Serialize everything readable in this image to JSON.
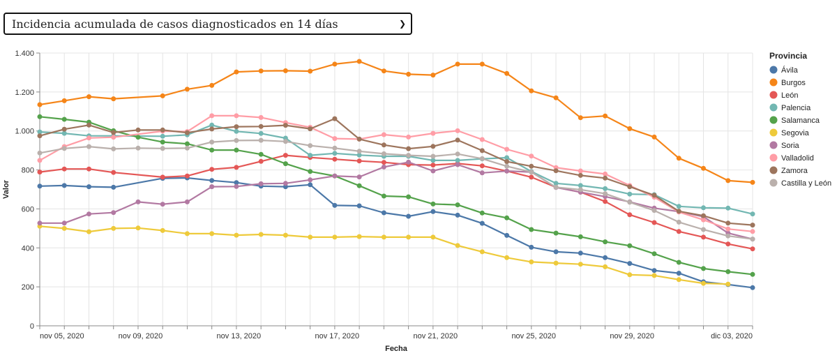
{
  "selector": {
    "selected": "Incidencia acumulada de casos diagnosticados en 14 días",
    "chevron_icon": "chevron-down-icon"
  },
  "chart_data": {
    "type": "line",
    "title": "",
    "xlabel": "Fecha",
    "ylabel": "Valor",
    "ylim": [
      0,
      1400
    ],
    "yticks": [
      0,
      200,
      400,
      600,
      800,
      1000,
      1200,
      1400
    ],
    "ytick_labels": [
      "0",
      "200",
      "400",
      "600",
      "800",
      "1.000",
      "1.200",
      "1.400"
    ],
    "xtick_labels": [
      {
        "day_index": 1,
        "label": "nov 05, 2020"
      },
      {
        "day_index": 5,
        "label": "nov 09, 2020"
      },
      {
        "day_index": 9,
        "label": "nov 13, 2020"
      },
      {
        "day_index": 13,
        "label": "nov 17, 2020"
      },
      {
        "day_index": 17,
        "label": "nov 21, 2020"
      },
      {
        "day_index": 21,
        "label": "nov 25, 2020"
      },
      {
        "day_index": 25,
        "label": "nov 29, 2020"
      },
      {
        "day_index": 29,
        "label": "dic 03, 2020"
      }
    ],
    "x": [
      "2020-11-04",
      "2020-11-05",
      "2020-11-06",
      "2020-11-07",
      "2020-11-08",
      "2020-11-09",
      "2020-11-10",
      "2020-11-11",
      "2020-11-12",
      "2020-11-13",
      "2020-11-14",
      "2020-11-15",
      "2020-11-16",
      "2020-11-17",
      "2020-11-18",
      "2020-11-19",
      "2020-11-20",
      "2020-11-21",
      "2020-11-22",
      "2020-11-23",
      "2020-11-24",
      "2020-11-25",
      "2020-11-26",
      "2020-11-27",
      "2020-11-28",
      "2020-11-29",
      "2020-11-30",
      "2020-12-01",
      "2020-12-02",
      "2020-12-03"
    ],
    "grid": true,
    "legend": {
      "title": "Provincia",
      "position": "right"
    },
    "series": [
      {
        "name": "Ávila",
        "color": "#4c78a8",
        "values": [
          717,
          720,
          714,
          711,
          null,
          757,
          759,
          746,
          735,
          717,
          714,
          724,
          618,
          616,
          580,
          562,
          586,
          568,
          526,
          464,
          403,
          380,
          373,
          350,
          320,
          284,
          270,
          226,
          212,
          196
        ]
      },
      {
        "name": "Burgos",
        "color": "#f58518",
        "values": [
          1135,
          1155,
          1176,
          1165,
          null,
          1180,
          1214,
          1234,
          1303,
          1308,
          1309,
          1307,
          1343,
          1357,
          1308,
          1291,
          1287,
          1343,
          1343,
          1295,
          1206,
          1170,
          1068,
          1077,
          1012,
          969,
          860,
          808,
          745,
          736
        ]
      },
      {
        "name": "León",
        "color": "#e45756",
        "values": [
          789,
          805,
          805,
          787,
          null,
          763,
          769,
          803,
          813,
          844,
          875,
          864,
          855,
          846,
          839,
          827,
          825,
          833,
          821,
          794,
          763,
          711,
          686,
          638,
          570,
          530,
          484,
          455,
          420,
          395
        ]
      },
      {
        "name": "Palencia",
        "color": "#72b7b2",
        "values": [
          995,
          988,
          975,
          975,
          null,
          973,
          980,
          1030,
          998,
          987,
          963,
          875,
          885,
          876,
          870,
          870,
          849,
          849,
          857,
          863,
          792,
          731,
          720,
          704,
          676,
          673,
          613,
          606,
          604,
          574
        ]
      },
      {
        "name": "Salamanca",
        "color": "#54a24b",
        "values": [
          1073,
          1060,
          1045,
          1001,
          968,
          943,
          934,
          902,
          902,
          880,
          832,
          792,
          769,
          719,
          666,
          662,
          625,
          621,
          579,
          554,
          494,
          476,
          457,
          431,
          411,
          370,
          326,
          294,
          278,
          264
        ]
      },
      {
        "name": "Segovia",
        "color": "#eeca3b",
        "values": [
          511,
          500,
          483,
          500,
          502,
          489,
          473,
          473,
          465,
          469,
          465,
          455,
          455,
          458,
          455,
          455,
          455,
          412,
          380,
          350,
          328,
          322,
          316,
          303,
          262,
          258,
          237,
          218,
          214,
          null
        ]
      },
      {
        "name": "Soria",
        "color": "#b279a2",
        "values": [
          527,
          527,
          574,
          581,
          636,
          624,
          636,
          714,
          715,
          729,
          731,
          749,
          769,
          764,
          815,
          840,
          795,
          827,
          785,
          794,
          789,
          710,
          686,
          663,
          636,
          604,
          586,
          560,
          476,
          445
        ]
      },
      {
        "name": "Valladolid",
        "color": "#ff9da6",
        "values": [
          849,
          920,
          964,
          968,
          null,
          999,
          997,
          1078,
          1078,
          1069,
          1043,
          1019,
          961,
          958,
          981,
          969,
          988,
          1001,
          956,
          906,
          871,
          812,
          795,
          779,
          720,
          660,
          584,
          544,
          497,
          484
        ]
      },
      {
        "name": "Zamora",
        "color": "#9d755d",
        "values": [
          975,
          1009,
          1030,
          992,
          1005,
          1005,
          991,
          1010,
          1022,
          1023,
          1029,
          1011,
          1063,
          958,
          928,
          909,
          921,
          953,
          899,
          843,
          819,
          796,
          772,
          758,
          714,
          670,
          588,
          565,
          527,
          517
        ]
      },
      {
        "name": "Castilla y León",
        "color": "#bab0ac",
        "values": [
          887,
          910,
          920,
          908,
          912,
          910,
          912,
          943,
          951,
          952,
          946,
          925,
          912,
          896,
          883,
          875,
          870,
          882,
          858,
          819,
          789,
          711,
          699,
          678,
          634,
          592,
          532,
          494,
          461,
          445
        ]
      }
    ]
  }
}
